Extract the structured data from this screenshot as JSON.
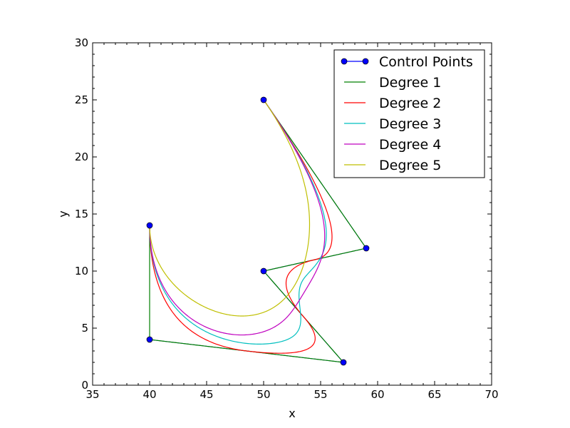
{
  "chart_data": {
    "type": "line",
    "title": "",
    "xlabel": "x",
    "ylabel": "y",
    "xlim": [
      35,
      70
    ],
    "ylim": [
      0,
      30
    ],
    "x_ticks": [
      35,
      40,
      45,
      50,
      55,
      60,
      65,
      70
    ],
    "y_ticks": [
      0,
      5,
      10,
      15,
      20,
      25,
      30
    ],
    "grid": false,
    "legend_position": "top-right",
    "control_points": {
      "name": "Control Points",
      "color": "#0000ff",
      "x": [
        40,
        40,
        57,
        50,
        59,
        50
      ],
      "y": [
        14,
        4,
        2,
        10,
        12,
        25
      ]
    },
    "series": [
      {
        "name": "Degree 1",
        "degree": 1,
        "color": "#008000"
      },
      {
        "name": "Degree 2",
        "degree": 2,
        "color": "#ff0000"
      },
      {
        "name": "Degree 3",
        "degree": 3,
        "color": "#00bfbf"
      },
      {
        "name": "Degree 4",
        "degree": 4,
        "color": "#bf00bf"
      },
      {
        "name": "Degree 5",
        "degree": 5,
        "color": "#bfbf00"
      }
    ]
  }
}
